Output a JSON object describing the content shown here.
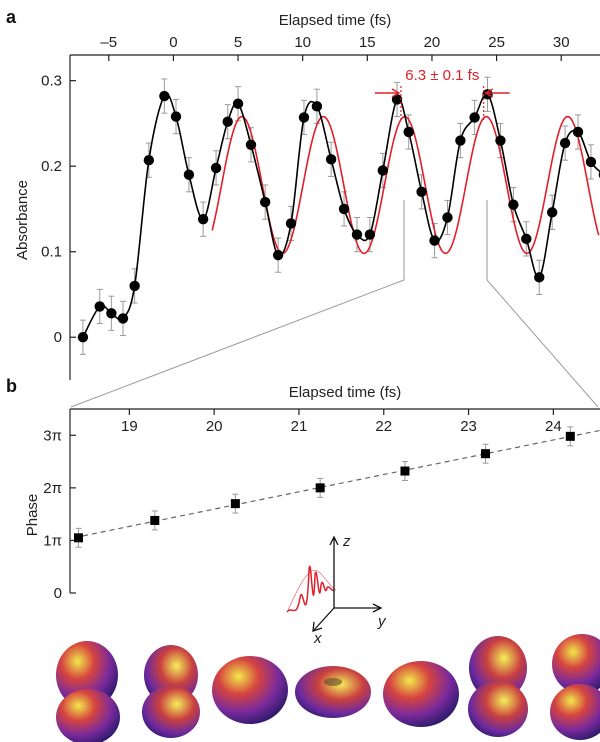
{
  "chart_data": [
    {
      "panel": "a",
      "type": "line",
      "xlabel": "Elapsed time (fs)",
      "ylabel": "Absorbance",
      "xlim": [
        -8,
        33
      ],
      "ylim": [
        -0.05,
        0.33
      ],
      "xticks": [
        -5,
        0,
        5,
        10,
        15,
        20,
        25,
        30
      ],
      "yticks": [
        0,
        0.1,
        0.2,
        0.3
      ],
      "ytick_labels": [
        "0",
        "0.1",
        "0.2",
        "0.3"
      ],
      "axis_position": "top",
      "grid": false,
      "annotation": {
        "text": "6.3 ± 0.1 fs",
        "color": "#e0202a",
        "x_from": 17.6,
        "x_to": 24.0
      },
      "series": [
        {
          "color": "#000000",
          "marker": "circle",
          "error_bars": true,
          "x": [
            -7.0,
            -5.7,
            -4.8,
            -3.9,
            -3.0,
            -1.9,
            -0.7,
            0.2,
            1.2,
            2.3,
            3.3,
            4.2,
            5.0,
            6.0,
            7.1,
            8.1,
            9.1,
            10.1,
            11.1,
            12.2,
            13.2,
            14.2,
            15.2,
            16.2,
            17.3,
            18.2,
            19.2,
            20.2,
            21.2,
            22.2,
            23.3,
            24.3,
            25.3,
            26.3,
            27.3,
            28.3,
            29.3,
            30.3,
            31.3,
            32.3,
            33.3
          ],
          "y": [
            0.0,
            0.036,
            0.028,
            0.022,
            0.06,
            0.207,
            0.282,
            0.258,
            0.19,
            0.138,
            0.198,
            0.252,
            0.273,
            0.225,
            0.158,
            0.096,
            0.133,
            0.257,
            0.27,
            0.208,
            0.15,
            0.12,
            0.12,
            0.195,
            0.278,
            0.24,
            0.17,
            0.113,
            0.14,
            0.23,
            0.257,
            0.284,
            0.23,
            0.155,
            0.115,
            0.07,
            0.146,
            0.227,
            0.24,
            0.205,
            0.19
          ]
        },
        {
          "color": "#e0202a",
          "marker": "none",
          "error_bars": false,
          "x": [
            3.0,
            33.0
          ],
          "y": [
            0.175,
            0.26
          ]
        }
      ]
    },
    {
      "panel": "b",
      "type": "scatter",
      "xlabel": "Elapsed time (fs)",
      "ylabel": "Phase",
      "xlim": [
        18.3,
        24.55
      ],
      "ylim": [
        0,
        3.5
      ],
      "xticks": [
        19,
        20,
        21,
        22,
        23,
        24
      ],
      "yticks": [
        1,
        2,
        3
      ],
      "ytick_labels": [
        "1π",
        "2π",
        "3π"
      ],
      "axis_position": "top",
      "grid": false,
      "series": [
        {
          "color": "#000000",
          "marker": "square",
          "error_bars": true,
          "fit_line": "dashed",
          "x": [
            18.4,
            19.3,
            20.25,
            21.25,
            22.25,
            23.2,
            24.2
          ],
          "y": [
            1.05,
            1.38,
            1.7,
            2.0,
            2.32,
            2.65,
            2.98
          ]
        }
      ],
      "inset_axes_labels": [
        "z",
        "x",
        "y"
      ]
    }
  ],
  "panel_labels": {
    "a": "a",
    "b": "b"
  },
  "colors": {
    "data": "#000000",
    "model": "#e0202a",
    "error": "#9a9a9a",
    "zoom_lines": "#9a9a9a"
  }
}
